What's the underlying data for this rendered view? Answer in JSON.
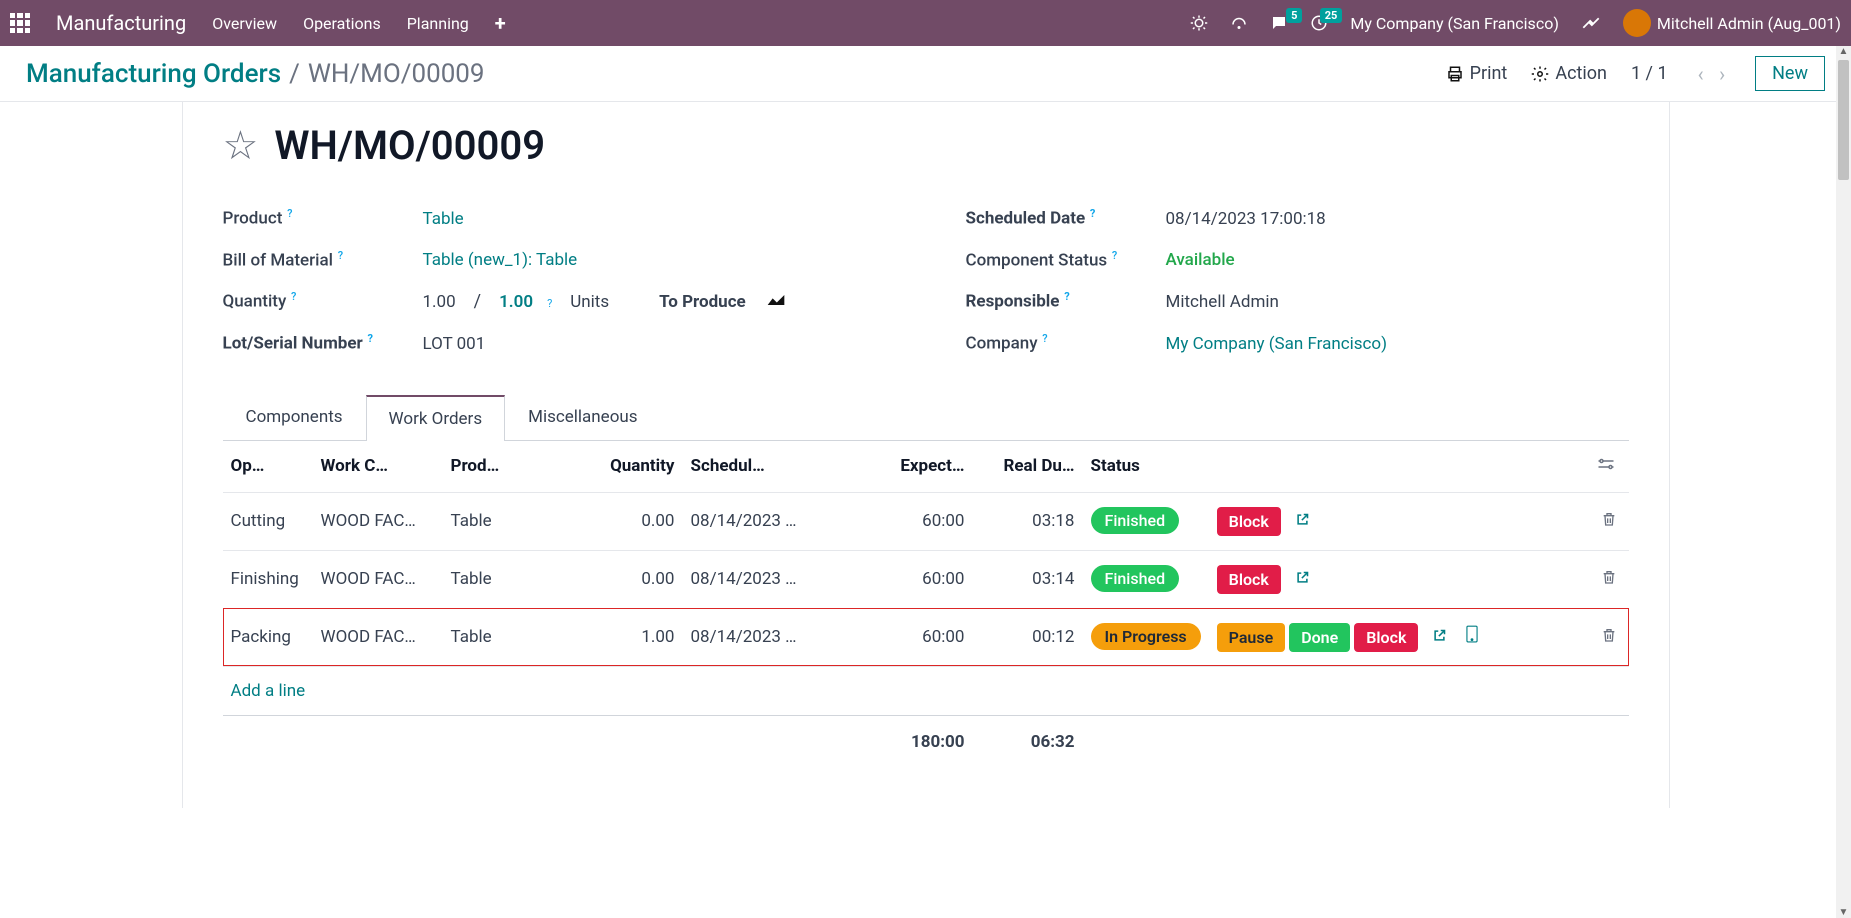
{
  "topbar": {
    "app_title": "Manufacturing",
    "menus": [
      "Overview",
      "Operations",
      "Planning"
    ],
    "msg_badge": "5",
    "activity_badge": "25",
    "company": "My Company (San Francisco)",
    "user": "Mitchell Admin (Aug_001)"
  },
  "crumb": {
    "root": "Manufacturing Orders",
    "current": "WH/MO/00009",
    "print": "Print",
    "action": "Action",
    "pager": "1 / 1",
    "new": "New"
  },
  "record": {
    "title": "WH/MO/00009",
    "left": {
      "product_label": "Product",
      "product_value": "Table",
      "bom_label": "Bill of Material",
      "bom_value": "Table (new_1): Table",
      "qty_label": "Quantity",
      "qty1": "1.00",
      "qty2": "1.00",
      "qty_uom": "Units",
      "qty_extra": "To Produce",
      "lot_label": "Lot/Serial Number",
      "lot_value": "LOT 001"
    },
    "right": {
      "sched_label": "Scheduled Date",
      "sched_value": "08/14/2023 17:00:18",
      "comp_label": "Component Status",
      "comp_value": "Available",
      "resp_label": "Responsible",
      "resp_value": "Mitchell Admin",
      "company_label": "Company",
      "company_value": "My Company (San Francisco)"
    }
  },
  "tabs": {
    "components": "Components",
    "work_orders": "Work Orders",
    "misc": "Miscellaneous"
  },
  "table": {
    "headers": {
      "op": "Op…",
      "wc": "Work C…",
      "prod": "Prod…",
      "qty": "Quantity",
      "sched": "Schedul…",
      "exp": "Expect…",
      "real": "Real Du…",
      "status": "Status"
    },
    "rows": [
      {
        "op": "Cutting",
        "wc": "WOOD FAC…",
        "prod": "Table",
        "qty": "0.00",
        "sched": "08/14/2023 …",
        "exp": "60:00",
        "real": "03:18",
        "status": "Finished",
        "status_class": "pill-green",
        "actions": [
          {
            "label": "Block",
            "cls": "btn-red"
          }
        ],
        "ext": true,
        "tablet": false,
        "highlight": false
      },
      {
        "op": "Finishing",
        "wc": "WOOD FAC…",
        "prod": "Table",
        "qty": "0.00",
        "sched": "08/14/2023 …",
        "exp": "60:00",
        "real": "03:14",
        "status": "Finished",
        "status_class": "pill-green",
        "actions": [
          {
            "label": "Block",
            "cls": "btn-red"
          }
        ],
        "ext": true,
        "tablet": false,
        "highlight": false
      },
      {
        "op": "Packing",
        "wc": "WOOD FAC…",
        "prod": "Table",
        "qty": "1.00",
        "sched": "08/14/2023 …",
        "exp": "60:00",
        "real": "00:12",
        "status": "In Progress",
        "status_class": "pill-amber",
        "actions": [
          {
            "label": "Pause",
            "cls": "btn-amber"
          },
          {
            "label": "Done",
            "cls": "btn-green"
          },
          {
            "label": "Block",
            "cls": "btn-red"
          }
        ],
        "ext": true,
        "tablet": true,
        "highlight": true
      }
    ],
    "add_line": "Add a line",
    "totals": {
      "exp": "180:00",
      "real": "06:32"
    }
  },
  "colors": {
    "brand": "#714b67",
    "teal": "#017e84",
    "green": "#22c55e",
    "amber": "#f59e0b",
    "red": "#e11d48",
    "badge": "#00a09d"
  }
}
